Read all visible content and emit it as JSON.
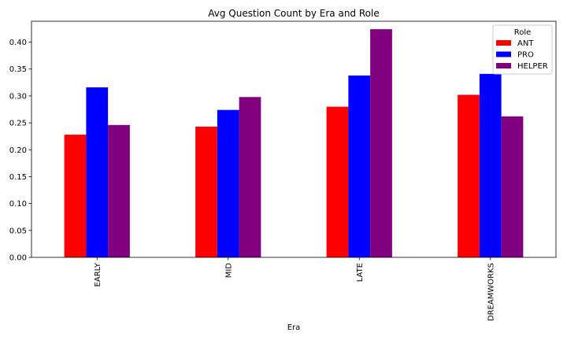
{
  "chart_data": {
    "type": "bar",
    "title": "Avg Question Count by Era and Role",
    "xlabel": "Era",
    "ylabel": "",
    "categories": [
      "EARLY",
      "MID",
      "LATE",
      "DREAMWORKS"
    ],
    "series": [
      {
        "name": "ANT",
        "color": "#ff0000",
        "values": [
          0.228,
          0.243,
          0.28,
          0.302
        ]
      },
      {
        "name": "PRO",
        "color": "#0000ff",
        "values": [
          0.316,
          0.274,
          0.338,
          0.341
        ]
      },
      {
        "name": "HELPER",
        "color": "#800080",
        "values": [
          0.246,
          0.298,
          0.424,
          0.262
        ]
      }
    ],
    "ylim": [
      0,
      0.4388
    ],
    "yticks": [
      "0.00",
      "0.05",
      "0.10",
      "0.15",
      "0.20",
      "0.25",
      "0.30",
      "0.35",
      "0.40"
    ],
    "grid": false,
    "legend": {
      "title": "Role",
      "placement": "top-right"
    }
  }
}
